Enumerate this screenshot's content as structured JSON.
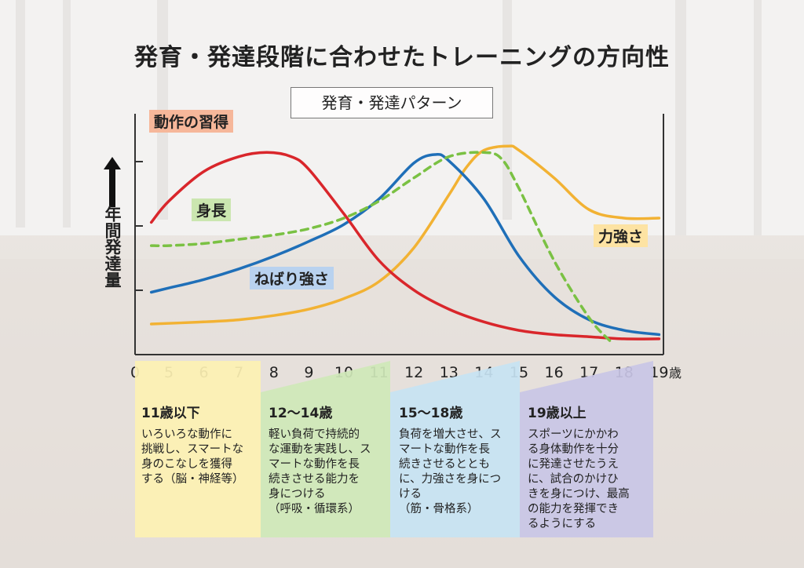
{
  "title": "発育・発達段階に合わせたトレーニングの方向性",
  "subtitle": "発育・発達パターン",
  "colors": {
    "motion": "#d9262b",
    "height": "#7ac143",
    "stickiness": "#1f6fb8",
    "strength": "#f2b233",
    "stage1": "#fdf1b3",
    "stage2": "#cfe8b8",
    "stage3": "#c7e3f3",
    "stage4": "#c9c6e6"
  },
  "chart_data": {
    "type": "line",
    "title": "発育・発達パターン",
    "ylabel": "年間発達量",
    "xunit": "歳",
    "xticks": [
      "0",
      "5",
      "6",
      "7",
      "8",
      "9",
      "10",
      "11",
      "12",
      "13",
      "14",
      "15",
      "16",
      "17",
      "18",
      "19"
    ],
    "series": [
      {
        "name": "動作の習得",
        "style": "solid",
        "color": "#d9262b",
        "x": [
          4.5,
          5,
          6,
          7,
          7.8,
          8.5,
          9,
          10,
          11,
          12,
          13,
          14,
          15,
          16,
          17,
          18,
          19
        ],
        "y": [
          0.58,
          0.68,
          0.82,
          0.89,
          0.91,
          0.89,
          0.83,
          0.62,
          0.4,
          0.26,
          0.17,
          0.11,
          0.07,
          0.05,
          0.04,
          0.03,
          0.03
        ]
      },
      {
        "name": "身長",
        "style": "dashed",
        "color": "#7ac143",
        "x": [
          4.5,
          5,
          6,
          7,
          8,
          9,
          10,
          11,
          12,
          13,
          14,
          14.5,
          15,
          16,
          17,
          17.6
        ],
        "y": [
          0.47,
          0.47,
          0.48,
          0.5,
          0.52,
          0.55,
          0.6,
          0.68,
          0.79,
          0.89,
          0.91,
          0.88,
          0.74,
          0.4,
          0.13,
          0.02
        ]
      },
      {
        "name": "ねばり強さ",
        "style": "solid",
        "color": "#1f6fb8",
        "x": [
          4.5,
          5,
          6,
          7,
          8,
          9,
          10,
          11,
          12,
          12.6,
          13,
          14,
          15,
          16,
          17,
          18,
          19
        ],
        "y": [
          0.25,
          0.27,
          0.31,
          0.36,
          0.42,
          0.49,
          0.57,
          0.69,
          0.86,
          0.9,
          0.87,
          0.69,
          0.42,
          0.23,
          0.12,
          0.07,
          0.05
        ]
      },
      {
        "name": "力強さ",
        "style": "solid",
        "color": "#f2b233",
        "x": [
          4.5,
          6,
          7,
          8,
          9,
          10,
          11,
          12,
          13,
          13.5,
          14,
          14.7,
          15,
          16,
          17,
          18,
          19
        ],
        "y": [
          0.1,
          0.11,
          0.12,
          0.14,
          0.17,
          0.22,
          0.3,
          0.46,
          0.71,
          0.84,
          0.92,
          0.94,
          0.92,
          0.79,
          0.64,
          0.6,
          0.6
        ]
      }
    ]
  },
  "stages": [
    {
      "title": "11歳以下",
      "body": "いろいろな動作に\n挑戦し、スマートな\n身のこなしを獲得\nする（脳・神経等）"
    },
    {
      "title": "12～14歳",
      "body": "軽い負荷で持続的\nな運動を実践し、ス\nマートな動作を長\n続きさせる能力を\n身につける\n（呼吸・循環系）"
    },
    {
      "title": "15～18歳",
      "body": "負荷を増大させ、ス\nマートな動作を長\n続きさせるととも\nに、力強さを身につ\nける\n（筋・骨格系）"
    },
    {
      "title": "19歳以上",
      "body": "スポーツにかかわ\nる身体動作を十分\nに発達させたうえ\nに、試合のかけひ\nきを身につけ、最高\nの能力を発揮でき\nるようにする"
    }
  ]
}
